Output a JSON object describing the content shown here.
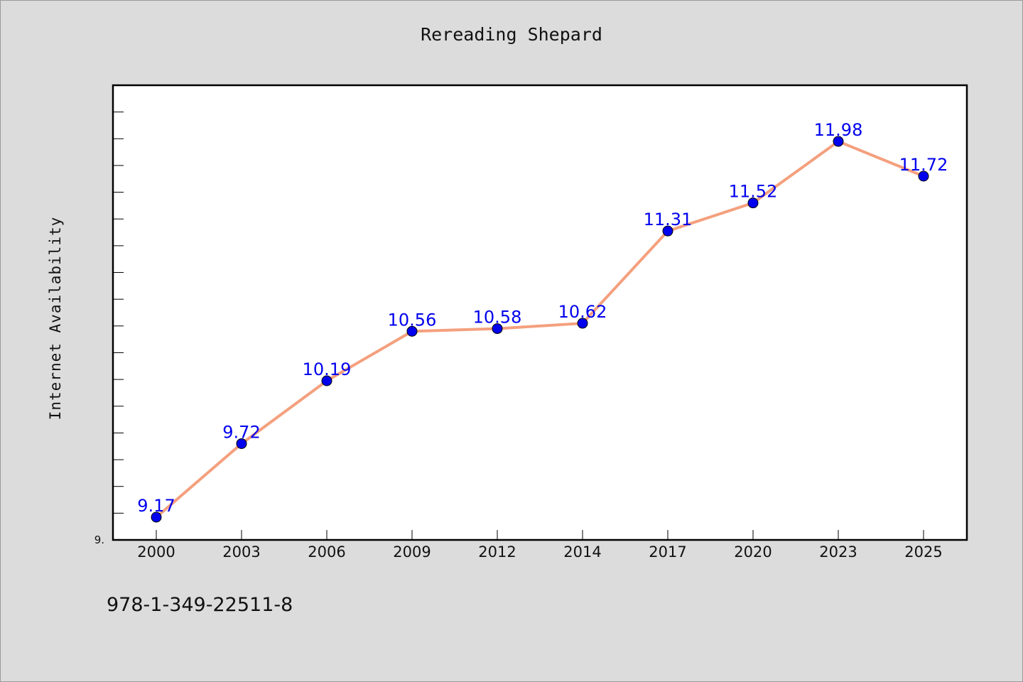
{
  "chart_data": {
    "type": "line",
    "title": "Rereading Shepard",
    "xlabel": "",
    "ylabel": "Internet Availability",
    "categories": [
      "2000",
      "2003",
      "2006",
      "2009",
      "2012",
      "2014",
      "2017",
      "2020",
      "2023",
      "2025"
    ],
    "series": [
      {
        "values": [
          9.17,
          9.72,
          10.19,
          10.56,
          10.58,
          10.62,
          11.31,
          11.52,
          11.98,
          11.72
        ]
      }
    ],
    "data_labels": [
      "9.17",
      "9.72",
      "10.19",
      "10.56",
      "10.58",
      "10.62",
      "11.31",
      "11.52",
      "11.98",
      "11.72"
    ],
    "y_tick_label": "9.",
    "ylim": [
      9.0,
      12.4
    ],
    "grid": false,
    "legend": "none",
    "colors": {
      "line": "#f4a07e",
      "marker": "#0000ee",
      "label": "#0000ee",
      "background": "#dcdcdc",
      "plot_background": "#ffffff"
    }
  },
  "footnote": "978-1-349-22511-8"
}
